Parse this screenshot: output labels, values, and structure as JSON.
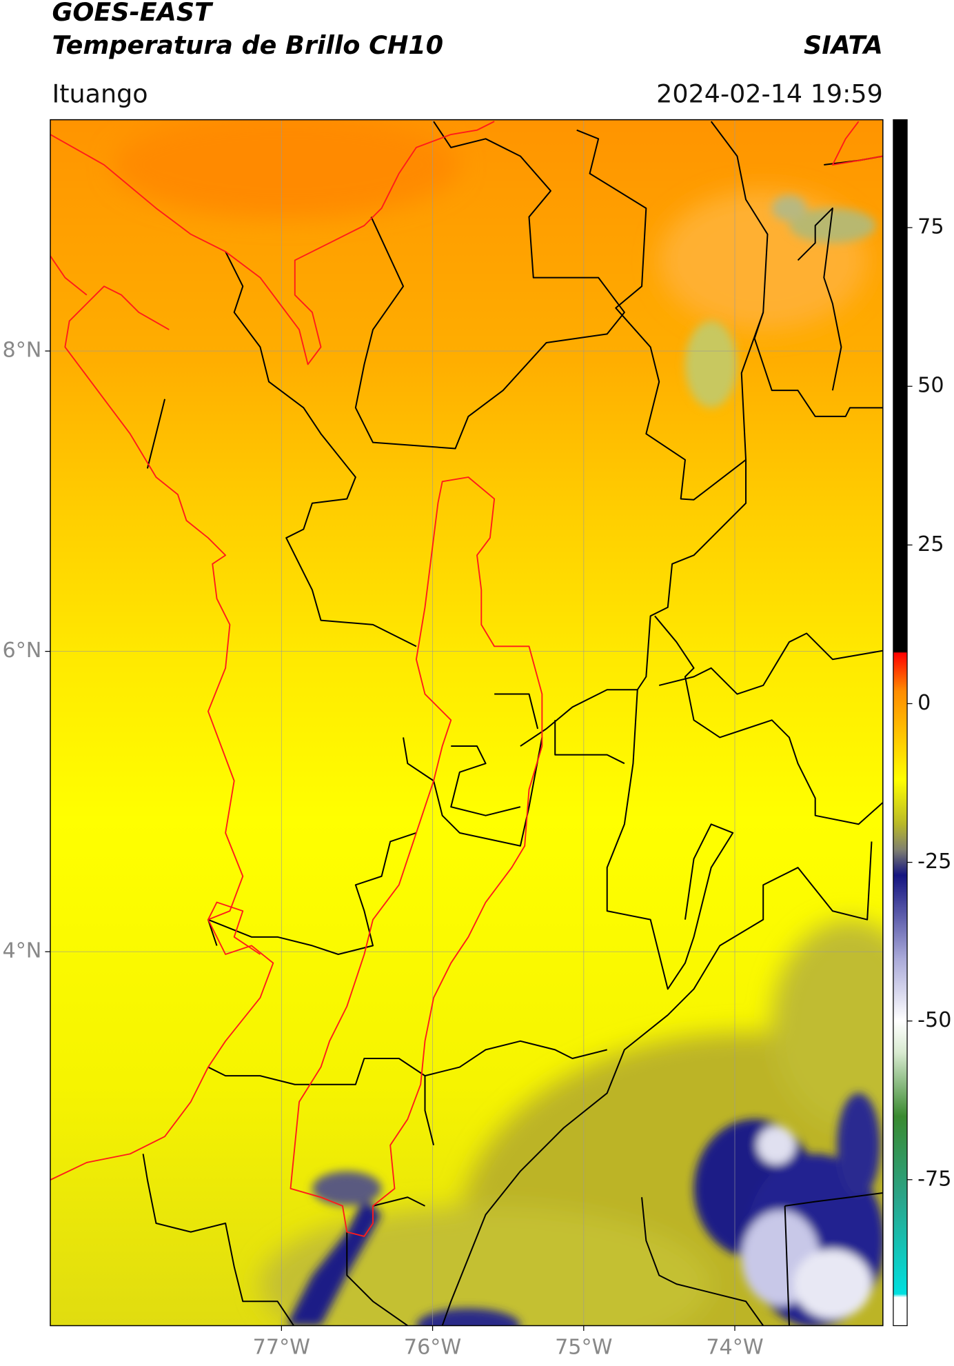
{
  "map": {
    "title": "GOES-EAST",
    "subtitle": "Temperatura de Brillo CH10",
    "brand": "SIATA",
    "location": "Ituango",
    "datetime": "2024-02-14 19:59",
    "xlim": [
      -78.53,
      -73.02
    ],
    "ylim": [
      1.51,
      9.54
    ],
    "xticks": [
      {
        "value": -77,
        "label": "77°W"
      },
      {
        "value": -76,
        "label": "76°W"
      },
      {
        "value": -75,
        "label": "75°W"
      },
      {
        "value": -74,
        "label": "74°W"
      }
    ],
    "yticks": [
      {
        "value": 8,
        "label": "8°N"
      },
      {
        "value": 6,
        "label": "6°N"
      },
      {
        "value": 4,
        "label": "4°N"
      }
    ],
    "colorbar": {
      "clim": [
        -98,
        92
      ],
      "ticks": [
        75,
        50,
        25,
        0,
        -25,
        -50,
        -75
      ],
      "stops": [
        {
          "value": -98,
          "color": "#ffffff"
        },
        {
          "value": -93.5,
          "color": "#ffffff"
        },
        {
          "value": -93,
          "color": "#00e0e0"
        },
        {
          "value": -78,
          "color": "#2aa58a"
        },
        {
          "value": -65,
          "color": "#3a8a30"
        },
        {
          "value": -55,
          "color": "#d8ead0"
        },
        {
          "value": -50,
          "color": "#ffffff"
        },
        {
          "value": -40,
          "color": "#a8a8d8"
        },
        {
          "value": -27,
          "color": "#141480"
        },
        {
          "value": -23,
          "color": "#808070"
        },
        {
          "value": -19,
          "color": "#b8b828"
        },
        {
          "value": -12,
          "color": "#ffff00"
        },
        {
          "value": 2,
          "color": "#ff8c00"
        },
        {
          "value": 8,
          "color": "#ff0000"
        },
        {
          "value": 8.2,
          "color": "#000000"
        },
        {
          "value": 92,
          "color": "#000000"
        }
      ]
    }
  }
}
